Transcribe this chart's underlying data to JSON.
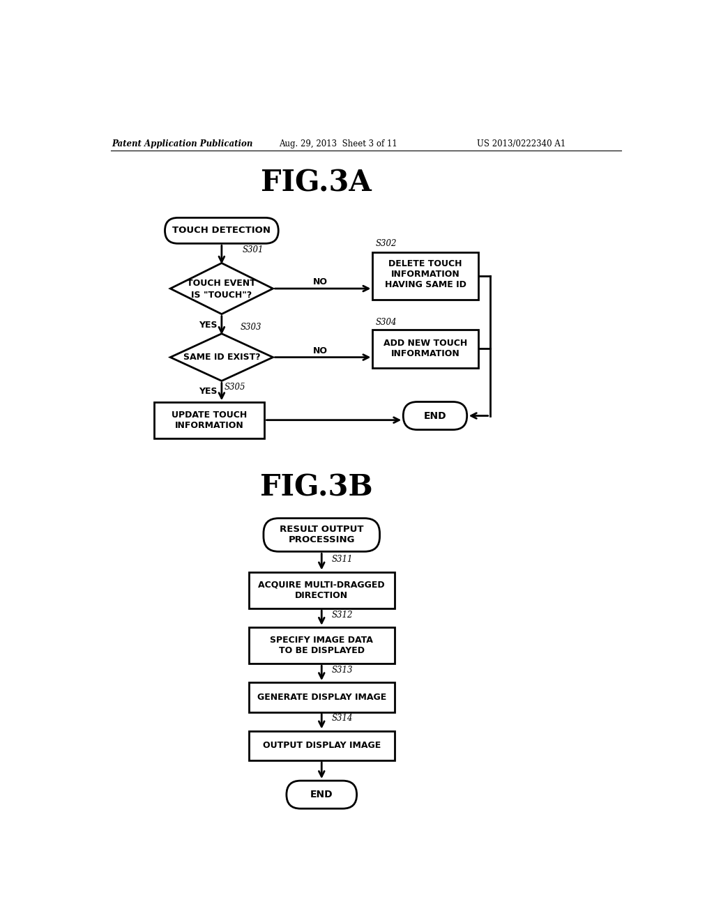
{
  "background_color": "#ffffff",
  "header_left": "Patent Application Publication",
  "header_center": "Aug. 29, 2013  Sheet 3 of 11",
  "header_right": "US 2013/0222340 A1",
  "fig3a_title": "FIG.3A",
  "fig3b_title": "FIG.3B",
  "line_color": "#000000",
  "text_color": "#000000"
}
